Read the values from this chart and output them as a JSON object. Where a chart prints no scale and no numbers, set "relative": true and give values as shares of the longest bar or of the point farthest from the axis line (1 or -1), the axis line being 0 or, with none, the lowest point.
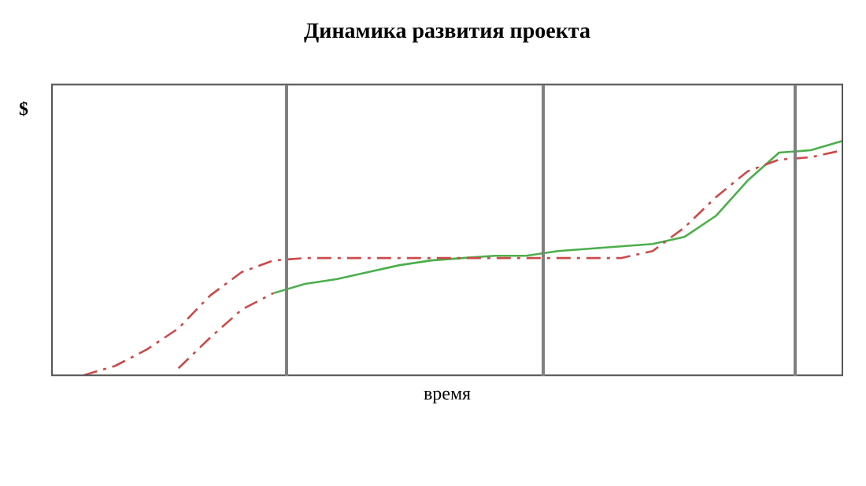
{
  "chart_data": {
    "type": "line",
    "title": "Динамика развития проекта",
    "xlabel": "время",
    "ylabel": "$",
    "relative": true,
    "categories": [
      null,
      null,
      null,
      null,
      null,
      null,
      null,
      null,
      null,
      null,
      null,
      null,
      null,
      null,
      null,
      null,
      null,
      null,
      null,
      null,
      null,
      null,
      null,
      null,
      null,
      null
    ],
    "marker": "none",
    "series": [
      {
        "color": "#cc4a4a",
        "line_style": "dashed",
        "values": [
          null,
          0,
          0.04,
          0.11,
          0.2,
          0.34,
          0.44,
          0.49,
          0.5,
          0.5,
          0.5,
          0.5,
          0.5,
          0.5,
          0.5,
          0.5,
          0.5,
          0.5,
          0.5,
          0.53,
          0.63,
          0.76,
          0.87,
          0.92,
          0.93,
          0.96
        ]
      },
      {
        "color": "#cc4a4a",
        "line_style": "dashed",
        "values": [
          null,
          null,
          null,
          null,
          0.03,
          0.16,
          0.28,
          0.35,
          null,
          null,
          null,
          null,
          null,
          null,
          null,
          null,
          null,
          null,
          null,
          null,
          null,
          null,
          null,
          null,
          null,
          null
        ]
      },
      {
        "color": "#4caf4c",
        "line_style": "solid",
        "values": [
          null,
          null,
          null,
          null,
          null,
          null,
          null,
          0.35,
          0.39,
          0.41,
          0.44,
          0.47,
          0.49,
          0.5,
          0.51,
          0.51,
          0.53,
          0.54,
          0.55,
          0.56,
          0.59,
          0.68,
          0.83,
          0.95,
          0.96,
          1
        ]
      }
    ]
  }
}
